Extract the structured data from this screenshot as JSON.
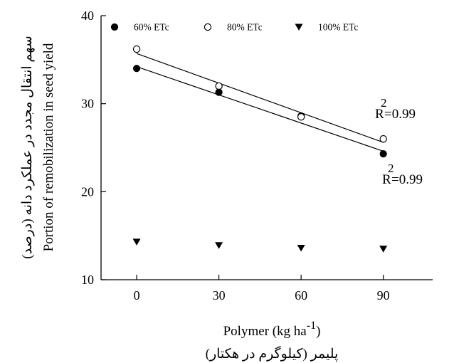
{
  "chart_data": {
    "type": "scatter",
    "x": [
      0,
      30,
      60,
      90
    ],
    "xlim": [
      -13,
      108
    ],
    "ylim": [
      10,
      40
    ],
    "xticks": [
      0,
      30,
      60,
      90
    ],
    "yticks": [
      10,
      20,
      30,
      40
    ],
    "xlabel": "Polymer (kg ha",
    "xlabel_sup": "-1",
    "xlabel_close": ")",
    "xlabel_secondary": "پلیمر (کیلوگرم در هکتار)",
    "ylabel": "Portion of remobilization in seed yield",
    "ylabel_secondary": "سهم انتقال مجدد در عملکرد دانه (درصد)",
    "legend_position": "top",
    "series": [
      {
        "name": "60% ETc",
        "marker": "filled-circle",
        "color": "#000000",
        "values": [
          34.0,
          31.3,
          28.6,
          24.3
        ],
        "fit": {
          "x": [
            0,
            90
          ],
          "y": [
            34.2,
            24.6
          ]
        },
        "r2_label": "R",
        "r2_sup": "2",
        "r2_value": "=0.99"
      },
      {
        "name": "80% ETc",
        "marker": "open-circle",
        "color": "#000000",
        "values": [
          36.2,
          32.0,
          28.5,
          26.0
        ],
        "fit": {
          "x": [
            0,
            90
          ],
          "y": [
            35.7,
            25.6
          ]
        },
        "r2_label": "R",
        "r2_sup": "2",
        "r2_value": "=0.99"
      },
      {
        "name": "100% ETc",
        "marker": "filled-triangle-down",
        "color": "#000000",
        "values": [
          14.3,
          13.9,
          13.6,
          13.5
        ]
      }
    ]
  }
}
